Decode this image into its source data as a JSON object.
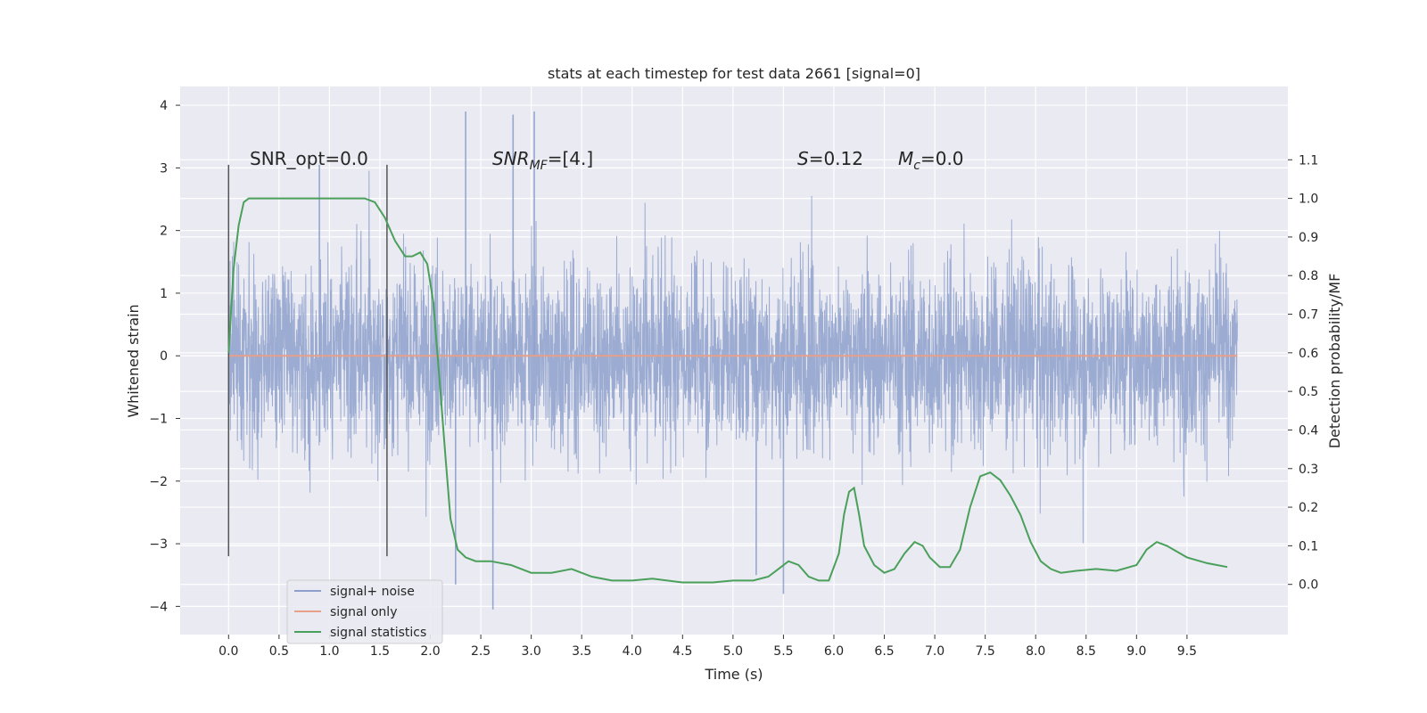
{
  "chart_data": {
    "type": "line",
    "title": "stats at each timestep for test data 2661 [signal=0]",
    "xlabel": "Time (s)",
    "ylabel": "Whitened strain",
    "y2label": "Detection probability/MF",
    "xlim": [
      -0.48,
      10.5
    ],
    "ylim": [
      -4.45,
      4.3
    ],
    "y2lim": [
      -0.13,
      1.29
    ],
    "xticks": [
      "0.0",
      "0.5",
      "1.0",
      "1.5",
      "2.0",
      "2.5",
      "3.0",
      "3.5",
      "4.0",
      "4.5",
      "5.0",
      "5.5",
      "6.0",
      "6.5",
      "7.0",
      "7.5",
      "8.0",
      "8.5",
      "9.0",
      "9.5"
    ],
    "yticks": [
      "4",
      "3",
      "2",
      "1",
      "0",
      "−1",
      "−2",
      "−3",
      "−4"
    ],
    "y2ticks": [
      "1.1",
      "1.0",
      "0.9",
      "0.8",
      "0.7",
      "0.6",
      "0.5",
      "0.4",
      "0.3",
      "0.2",
      "0.1",
      "0.0"
    ],
    "grid": true,
    "legend_position": "lower-left",
    "series": [
      {
        "name": "signal+ noise",
        "color": "#8da0cb",
        "description_x_range": [
          0.0,
          10.0
        ],
        "envelope_typical": [
          -2.0,
          2.0
        ],
        "envelope_extreme": [
          -4.05,
          3.92
        ],
        "peaks": [
          [
            2.35,
            3.9
          ],
          [
            3.03,
            3.9
          ],
          [
            2.82,
            3.85
          ],
          [
            2.62,
            -4.05
          ],
          [
            5.5,
            -3.8
          ],
          [
            2.25,
            -3.65
          ],
          [
            5.23,
            -3.5
          ],
          [
            0.9,
            3.05
          ]
        ]
      },
      {
        "name": "signal only",
        "color": "#e8a08a",
        "x": [
          0.0,
          10.0
        ],
        "y": [
          0.0,
          0.0
        ]
      },
      {
        "name": "signal statistics",
        "color": "#4aa05a",
        "axis": "right",
        "x": [
          0.0,
          0.05,
          0.1,
          0.15,
          0.2,
          0.3,
          0.5,
          1.0,
          1.35,
          1.45,
          1.55,
          1.65,
          1.75,
          1.82,
          1.9,
          1.97,
          2.03,
          2.1,
          2.15,
          2.2,
          2.27,
          2.35,
          2.45,
          2.6,
          2.8,
          3.0,
          3.2,
          3.4,
          3.6,
          3.8,
          4.0,
          4.2,
          4.5,
          4.8,
          5.0,
          5.2,
          5.35,
          5.45,
          5.55,
          5.65,
          5.75,
          5.85,
          5.95,
          6.05,
          6.1,
          6.15,
          6.2,
          6.25,
          6.3,
          6.4,
          6.5,
          6.6,
          6.7,
          6.8,
          6.88,
          6.95,
          7.05,
          7.15,
          7.25,
          7.35,
          7.45,
          7.55,
          7.65,
          7.75,
          7.85,
          7.95,
          8.05,
          8.15,
          8.25,
          8.4,
          8.6,
          8.8,
          9.0,
          9.1,
          9.2,
          9.3,
          9.5,
          9.7,
          9.9
        ],
        "y": [
          0.6,
          0.82,
          0.93,
          0.99,
          1.0,
          1.0,
          1.0,
          1.0,
          1.0,
          0.99,
          0.95,
          0.89,
          0.85,
          0.85,
          0.86,
          0.83,
          0.73,
          0.5,
          0.33,
          0.17,
          0.09,
          0.07,
          0.06,
          0.06,
          0.05,
          0.03,
          0.03,
          0.04,
          0.02,
          0.01,
          0.01,
          0.015,
          0.005,
          0.005,
          0.01,
          0.01,
          0.02,
          0.04,
          0.06,
          0.05,
          0.02,
          0.01,
          0.01,
          0.08,
          0.18,
          0.24,
          0.25,
          0.18,
          0.1,
          0.05,
          0.03,
          0.04,
          0.08,
          0.11,
          0.1,
          0.07,
          0.045,
          0.045,
          0.09,
          0.2,
          0.28,
          0.29,
          0.27,
          0.23,
          0.18,
          0.11,
          0.06,
          0.04,
          0.03,
          0.035,
          0.04,
          0.035,
          0.05,
          0.09,
          0.11,
          0.1,
          0.07,
          0.055,
          0.045
        ]
      }
    ],
    "vlines": [
      {
        "x": 0.0,
        "ymin": -3.2,
        "ymax": 3.05
      },
      {
        "x": 1.57,
        "ymin": -3.2,
        "ymax": 3.05
      }
    ],
    "annotations": [
      {
        "name": "snr-opt",
        "parts": [
          {
            "t": "SNR_opt=0.0"
          }
        ]
      },
      {
        "name": "snr-mf",
        "parts": [
          {
            "t": "SNR",
            "i": true
          },
          {
            "t": "MF",
            "i": true,
            "sub": true
          },
          {
            "t": "=[4.]"
          }
        ]
      },
      {
        "name": "s-stat",
        "parts": [
          {
            "t": "S",
            "i": true
          },
          {
            "t": "=0.12"
          }
        ]
      },
      {
        "name": "mc",
        "parts": [
          {
            "t": "M",
            "i": true
          },
          {
            "t": "c",
            "i": true,
            "sub": true
          },
          {
            "t": "=0.0"
          }
        ]
      }
    ]
  }
}
